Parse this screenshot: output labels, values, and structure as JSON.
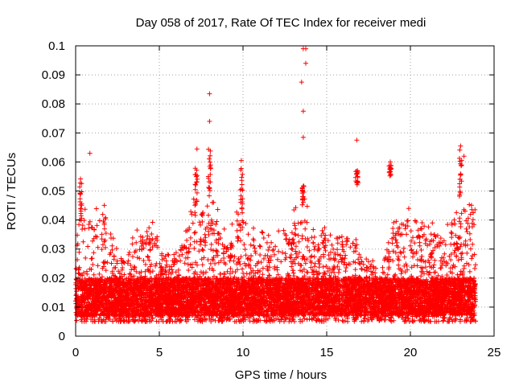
{
  "chart_data": {
    "type": "scatter",
    "title": "Day 058 of 2017, Rate Of TEC Index for receiver medi",
    "xlabel": "GPS time / hours",
    "ylabel": "ROTI / TECUs",
    "xlim": [
      0,
      25
    ],
    "ylim": [
      0,
      0.1
    ],
    "xticks": [
      "0",
      "5",
      "10",
      "15",
      "20",
      "25"
    ],
    "yticks": [
      "0",
      "0.01",
      "0.02",
      "0.03",
      "0.04",
      "0.05",
      "0.06",
      "0.07",
      "0.08",
      "0.09",
      "0.1"
    ],
    "grid": true,
    "marker": "plus",
    "color": "#ff0000",
    "notable_points": [
      {
        "x": 0.85,
        "y": 0.063
      },
      {
        "x": 7.25,
        "y": 0.0645
      },
      {
        "x": 8.0,
        "y": 0.0835
      },
      {
        "x": 8.0,
        "y": 0.074
      },
      {
        "x": 9.9,
        "y": 0.0605
      },
      {
        "x": 13.6,
        "y": 0.099
      },
      {
        "x": 13.75,
        "y": 0.099
      },
      {
        "x": 13.75,
        "y": 0.094
      },
      {
        "x": 13.5,
        "y": 0.0875
      },
      {
        "x": 13.6,
        "y": 0.0775
      },
      {
        "x": 13.6,
        "y": 0.0685
      },
      {
        "x": 16.8,
        "y": 0.0675
      },
      {
        "x": 16.85,
        "y": 0.055
      },
      {
        "x": 18.8,
        "y": 0.06
      },
      {
        "x": 23.0,
        "y": 0.0655
      },
      {
        "x": 23.2,
        "y": 0.062
      }
    ],
    "bulk_range_y": [
      0.003,
      0.05
    ],
    "dense_band_y": [
      0.007,
      0.02
    ]
  }
}
